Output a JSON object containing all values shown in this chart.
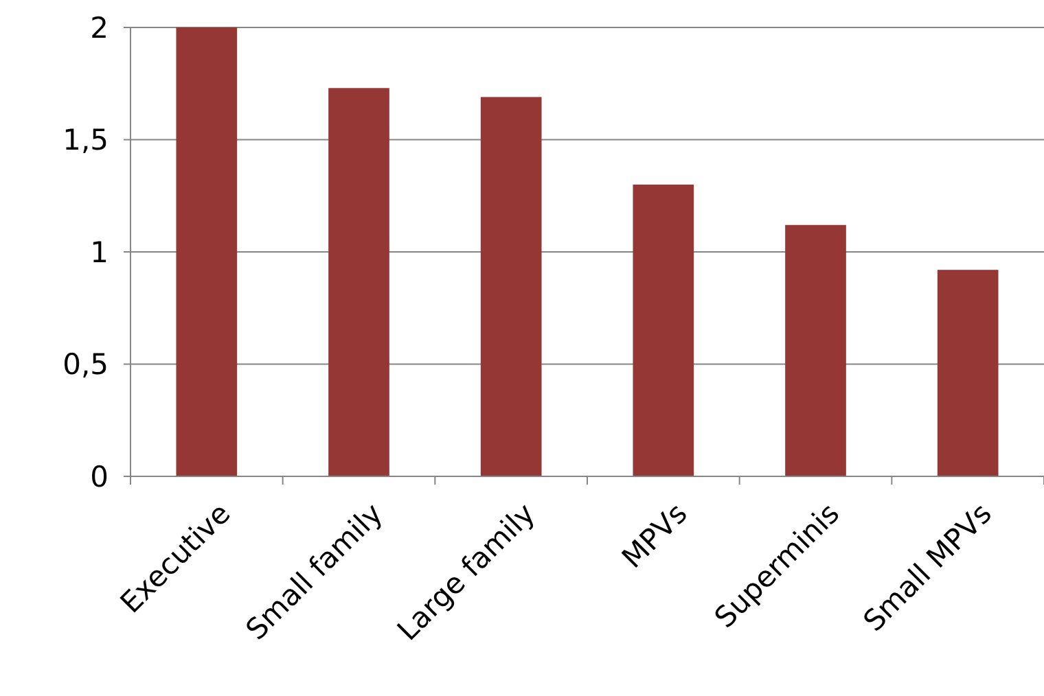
{
  "chart_data": {
    "type": "bar",
    "categories": [
      "Executive",
      "Small family",
      "Large family",
      "MPVs",
      "Superminis",
      "Small MPVs"
    ],
    "values": [
      2.0,
      1.73,
      1.69,
      1.3,
      1.12,
      0.92
    ],
    "color": "#953735",
    "ylim": [
      0,
      2
    ],
    "yticks": [
      0,
      {
        "value": 0.5,
        "label": "0,5"
      },
      1,
      {
        "value": 1.5,
        "label": "1,5"
      },
      2
    ],
    "grid": "y"
  }
}
